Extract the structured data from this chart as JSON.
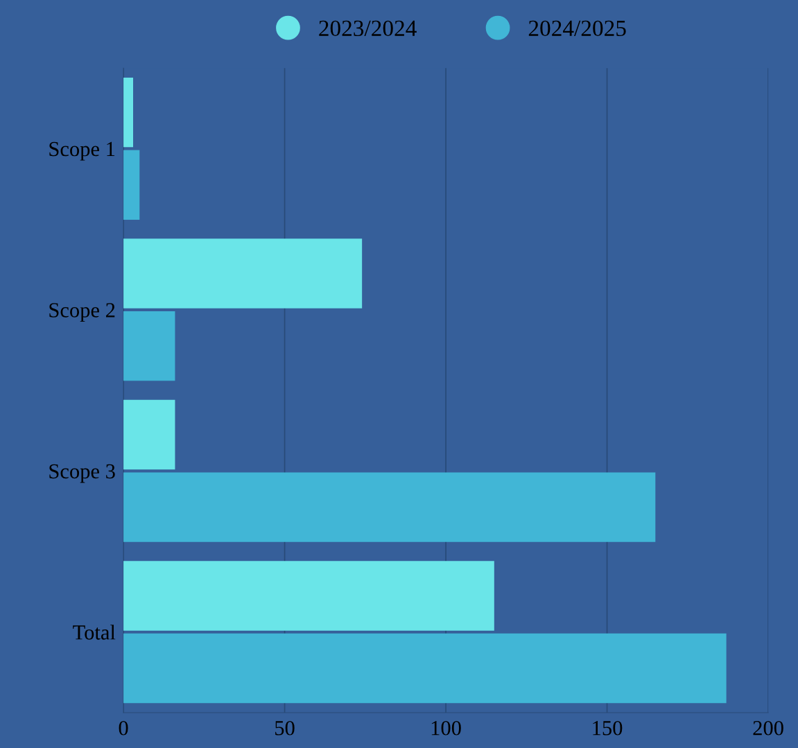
{
  "chart_data": {
    "type": "bar",
    "orientation": "horizontal",
    "categories": [
      "Scope 1",
      "Scope 2",
      "Scope 3",
      "Total"
    ],
    "series": [
      {
        "name": "2023/2024",
        "color": "#6ae5e8",
        "values": [
          3,
          74,
          16,
          115
        ]
      },
      {
        "name": "2024/2025",
        "color": "#41b6d6",
        "values": [
          5,
          16,
          165,
          187
        ]
      }
    ],
    "xlim": [
      0,
      200
    ],
    "xticks": [
      0,
      50,
      100,
      150,
      200
    ],
    "grid": "x",
    "legend": "top"
  }
}
